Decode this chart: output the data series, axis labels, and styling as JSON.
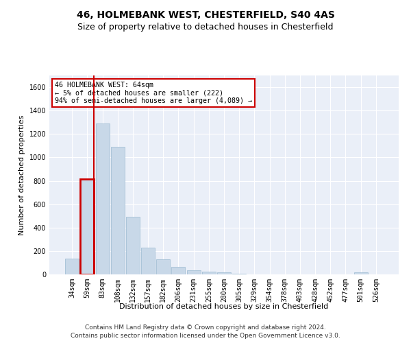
{
  "title": "46, HOLMEBANK WEST, CHESTERFIELD, S40 4AS",
  "subtitle": "Size of property relative to detached houses in Chesterfield",
  "xlabel": "Distribution of detached houses by size in Chesterfield",
  "ylabel": "Number of detached properties",
  "bar_color": "#c8d8e8",
  "bar_edge_color": "#9ab8d0",
  "highlight_bar_index": 1,
  "highlight_edge_color": "#cc0000",
  "annotation_text": "46 HOLMEBANK WEST: 64sqm\n← 5% of detached houses are smaller (222)\n94% of semi-detached houses are larger (4,089) →",
  "annotation_box_color": "#ffffff",
  "annotation_box_edge_color": "#cc0000",
  "categories": [
    "34sqm",
    "59sqm",
    "83sqm",
    "108sqm",
    "132sqm",
    "157sqm",
    "182sqm",
    "206sqm",
    "231sqm",
    "255sqm",
    "280sqm",
    "305sqm",
    "329sqm",
    "354sqm",
    "378sqm",
    "403sqm",
    "428sqm",
    "452sqm",
    "477sqm",
    "501sqm",
    "526sqm"
  ],
  "values": [
    135,
    815,
    1290,
    1090,
    490,
    230,
    130,
    65,
    38,
    25,
    15,
    5,
    0,
    0,
    0,
    0,
    0,
    0,
    0,
    15,
    0
  ],
  "ylim": [
    0,
    1700
  ],
  "yticks": [
    0,
    200,
    400,
    600,
    800,
    1000,
    1200,
    1400,
    1600
  ],
  "background_color": "#eaeff8",
  "footer_line1": "Contains HM Land Registry data © Crown copyright and database right 2024.",
  "footer_line2": "Contains public sector information licensed under the Open Government Licence v3.0.",
  "title_fontsize": 10,
  "subtitle_fontsize": 9,
  "xlabel_fontsize": 8,
  "ylabel_fontsize": 8,
  "tick_fontsize": 7,
  "footer_fontsize": 6.5
}
